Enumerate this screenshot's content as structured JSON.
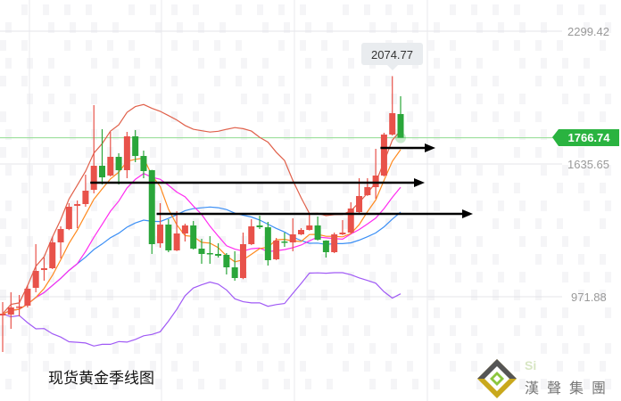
{
  "title": "现货黄金季线图",
  "logo": {
    "mark": "Si",
    "text": "漢聲集團"
  },
  "colors": {
    "up": "#e8524a",
    "down": "#2aa63a",
    "ma5": "#ff8a1e",
    "ma10": "#ff2cf0",
    "boll_mid": "#3b8ff5",
    "boll_upper": "#e0604a",
    "boll_lower": "#a05af5",
    "price_line": "#8fdc8f",
    "price_tag": "#2ab340",
    "arrow": "#000000"
  },
  "chart_data": {
    "type": "candlestick",
    "title": "现货黄金季线图",
    "y_ticks": [
      2299.42,
      1635.65,
      971.88
    ],
    "grid": true,
    "ohlc": [
      [
        878.3,
        945.1,
        695.6,
        887.2
      ],
      [
        882.7,
        994.2,
        811.5,
        918.4
      ],
      [
        918.4,
        980.7,
        873.8,
        922.8
      ],
      [
        927.3,
        1029.8,
        918.4,
        1011.9
      ],
      [
        1016.4,
        1234.7,
        994.1,
        1101.0
      ],
      [
        1105.5,
        1167.9,
        1052.0,
        1114.4
      ],
      [
        1114.4,
        1270.3,
        1110.0,
        1243.6
      ],
      [
        1243.6,
        1323.8,
        1163.4,
        1310.4
      ],
      [
        1310.4,
        1439.6,
        1305.0,
        1421.8
      ],
      [
        1426.3,
        1453.0,
        1314.9,
        1435.2
      ],
      [
        1435.2,
        1582.2,
        1421.8,
        1502.0
      ],
      [
        1506.5,
        1929.7,
        1488.6,
        1626.7
      ],
      [
        1626.7,
        1809.4,
        1533.2,
        1568.8
      ],
      [
        1577.7,
        1796.0,
        1573.0,
        1671.3
      ],
      [
        1671.3,
        1689.1,
        1533.2,
        1604.5
      ],
      [
        1604.5,
        1796.0,
        1564.4,
        1773.8
      ],
      [
        1773.8,
        1804.9,
        1644.6,
        1675.7
      ],
      [
        1675.7,
        1702.5,
        1564.4,
        1600.0
      ],
      [
        1604.5,
        1606.0,
        1185.7,
        1234.7
      ],
      [
        1239.2,
        1439.6,
        1216.9,
        1332.7
      ],
      [
        1332.7,
        1359.4,
        1194.6,
        1203.5
      ],
      [
        1203.5,
        1399.5,
        1200.0,
        1288.2
      ],
      [
        1288.2,
        1337.2,
        1248.1,
        1328.3
      ],
      [
        1328.3,
        1350.5,
        1208.0,
        1212.4
      ],
      [
        1212.4,
        1261.4,
        1136.7,
        1185.7
      ],
      [
        1190.2,
        1274.8,
        1136.7,
        1186.0
      ],
      [
        1185.7,
        1239.2,
        1167.9,
        1176.8
      ],
      [
        1181.3,
        1190.2,
        1083.2,
        1118.9
      ],
      [
        1118.9,
        1199.1,
        1052.0,
        1065.4
      ],
      [
        1065.4,
        1292.6,
        1060.0,
        1234.7
      ],
      [
        1234.7,
        1359.4,
        1230.0,
        1323.8
      ],
      [
        1328.3,
        1377.3,
        1310.4,
        1319.3
      ],
      [
        1319.3,
        1346.1,
        1127.8,
        1154.5
      ],
      [
        1159.0,
        1265.9,
        1155.0,
        1252.5
      ],
      [
        1248.1,
        1292.6,
        1221.3,
        1243.6
      ],
      [
        1243.6,
        1363.9,
        1199.1,
        1283.7
      ],
      [
        1283.7,
        1314.9,
        1280.0,
        1306.0
      ],
      [
        1306.0,
        1390.6,
        1303.0,
        1328.3
      ],
      [
        1328.3,
        1372.8,
        1253.0,
        1257.0
      ],
      [
        1252.5,
        1254.0,
        1167.9,
        1194.6
      ],
      [
        1194.6,
        1292.6,
        1190.0,
        1283.7
      ],
      [
        1283.7,
        1355.0,
        1280.0,
        1292.6
      ],
      [
        1292.6,
        1444.1,
        1288.0,
        1412.9
      ],
      [
        1395.1,
        1564.4,
        1390.0,
        1475.3
      ],
      [
        1479.7,
        1564.4,
        1476.0,
        1519.8
      ],
      [
        1519.8,
        1711.4,
        1461.9,
        1577.7
      ],
      [
        1577.7,
        1791.6,
        1573.0,
        1782.7
      ],
      [
        1782.7,
        2074.77,
        1778.0,
        1889.6
      ],
      [
        1885.1,
        1974.2,
        1766.74,
        1766.74
      ]
    ],
    "indicators": [
      "MA5",
      "MA10",
      "BOLL20"
    ],
    "high_label": "2074.77",
    "last_price_label": "1766.74",
    "last_price": 1766.74,
    "arrows": [
      {
        "price": 1542,
        "from_candle": 11
      },
      {
        "price": 1386,
        "from_candle": 19
      },
      {
        "price": 1716,
        "from_candle": 46
      }
    ]
  }
}
